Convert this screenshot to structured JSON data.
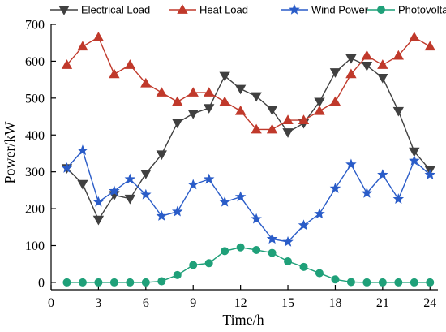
{
  "chart_data": {
    "type": "line",
    "xlabel": "Time/h",
    "ylabel": "Power/kW",
    "xlim": [
      0,
      24.5
    ],
    "ylim": [
      -20,
      700
    ],
    "xticks": [
      0,
      3,
      6,
      9,
      12,
      15,
      18,
      21,
      24
    ],
    "yticks": [
      0,
      100,
      200,
      300,
      400,
      500,
      600,
      700
    ],
    "grid": false,
    "legend_position": "top",
    "x": [
      1,
      2,
      3,
      4,
      5,
      6,
      7,
      8,
      9,
      10,
      11,
      12,
      13,
      14,
      15,
      16,
      17,
      18,
      19,
      20,
      21,
      22,
      23,
      24
    ],
    "series": [
      {
        "name": "Electrical Load",
        "color": "#404040",
        "marker": "triangle-down",
        "values": [
          310,
          267,
          170,
          237,
          227,
          295,
          347,
          433,
          458,
          473,
          560,
          525,
          505,
          468,
          407,
          432,
          490,
          570,
          608,
          588,
          555,
          465,
          355,
          305
        ]
      },
      {
        "name": "Heat Load",
        "color": "#c0392b",
        "marker": "triangle-up",
        "values": [
          590,
          640,
          665,
          565,
          590,
          540,
          515,
          490,
          515,
          515,
          490,
          465,
          415,
          415,
          440,
          440,
          465,
          490,
          565,
          615,
          590,
          615,
          665,
          640
        ]
      },
      {
        "name": "Wind Power",
        "color": "#2a5cc8",
        "marker": "star",
        "values": [
          310,
          358,
          218,
          248,
          280,
          238,
          180,
          192,
          265,
          280,
          218,
          232,
          172,
          118,
          110,
          155,
          186,
          255,
          320,
          242,
          292,
          226,
          330,
          292
        ]
      },
      {
        "name": "Photovoltaic",
        "color": "#1fa079",
        "marker": "circle",
        "values": [
          0,
          0,
          0,
          0,
          0,
          0,
          3,
          20,
          47,
          52,
          85,
          95,
          88,
          80,
          57,
          42,
          25,
          8,
          1,
          0,
          0,
          0,
          0,
          0
        ]
      }
    ]
  }
}
